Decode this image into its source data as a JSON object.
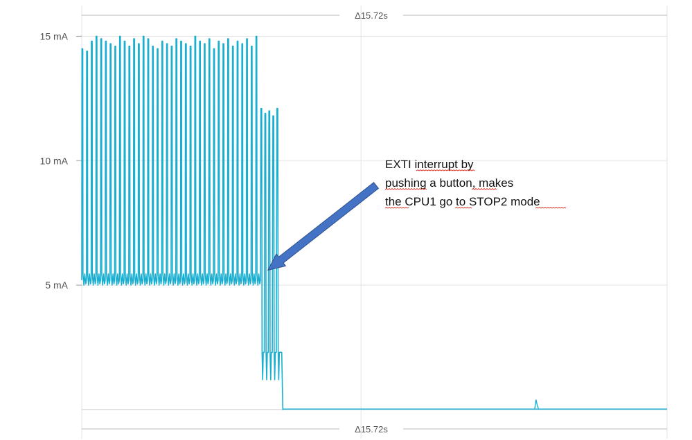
{
  "chart_data": {
    "type": "line",
    "title": "",
    "xlabel": "",
    "ylabel": "",
    "x_unit": "s",
    "y_unit": "mA",
    "xlim": [
      0,
      15.72
    ],
    "ylim": [
      0,
      15.4
    ],
    "y_ticks": [
      {
        "value": 5,
        "label": "5 mA"
      },
      {
        "value": 10,
        "label": "10 mA"
      },
      {
        "value": 15,
        "label": "15 mA"
      }
    ],
    "x_gridlines": [
      0,
      7.5,
      15.72
    ],
    "grid": true,
    "duration_marker": {
      "top_label": "Δ15.72s",
      "bottom_label": "Δ15.72s"
    },
    "series_color": "#1aafd0",
    "series": [
      {
        "name": "",
        "segments": [
          {
            "phase": "active",
            "t_start": 0.0,
            "t_end": 4.8,
            "baseline_mA": 5.2,
            "pulse_peaks_mA": [
              14.5,
              14.4,
              14.8,
              15.0,
              14.9,
              14.8,
              14.7,
              14.6,
              15.0,
              14.8,
              14.6,
              14.9,
              14.7,
              15.0,
              14.9,
              14.6,
              14.5,
              14.8,
              14.7,
              14.6,
              14.9,
              14.8,
              14.7,
              14.6,
              15.0,
              14.8,
              14.7,
              14.9,
              14.5,
              14.8,
              14.7,
              14.9,
              14.6,
              14.8,
              14.7,
              14.9,
              14.6,
              15.0
            ]
          },
          {
            "phase": "transition",
            "t_start": 4.8,
            "t_end": 5.4,
            "pulse_peaks_mA": [
              12.1,
              11.9,
              12.0,
              11.8,
              12.1
            ],
            "floor_mA": 1.2,
            "plateau_mA": 2.3
          },
          {
            "phase": "stop2",
            "t_start": 5.4,
            "t_end": 15.72,
            "level_mA": 0.02,
            "spike": {
              "t": 12.2,
              "mA": 0.4
            }
          }
        ]
      }
    ],
    "annotation": {
      "lines": [
        "EXTI interrupt by",
        "pushing a button, makes",
        "the CPU1 go to STOP2 mode"
      ],
      "arrow_target": {
        "t": 5.0,
        "mA": 5.6
      },
      "arrow_color": "#4472c4"
    }
  }
}
